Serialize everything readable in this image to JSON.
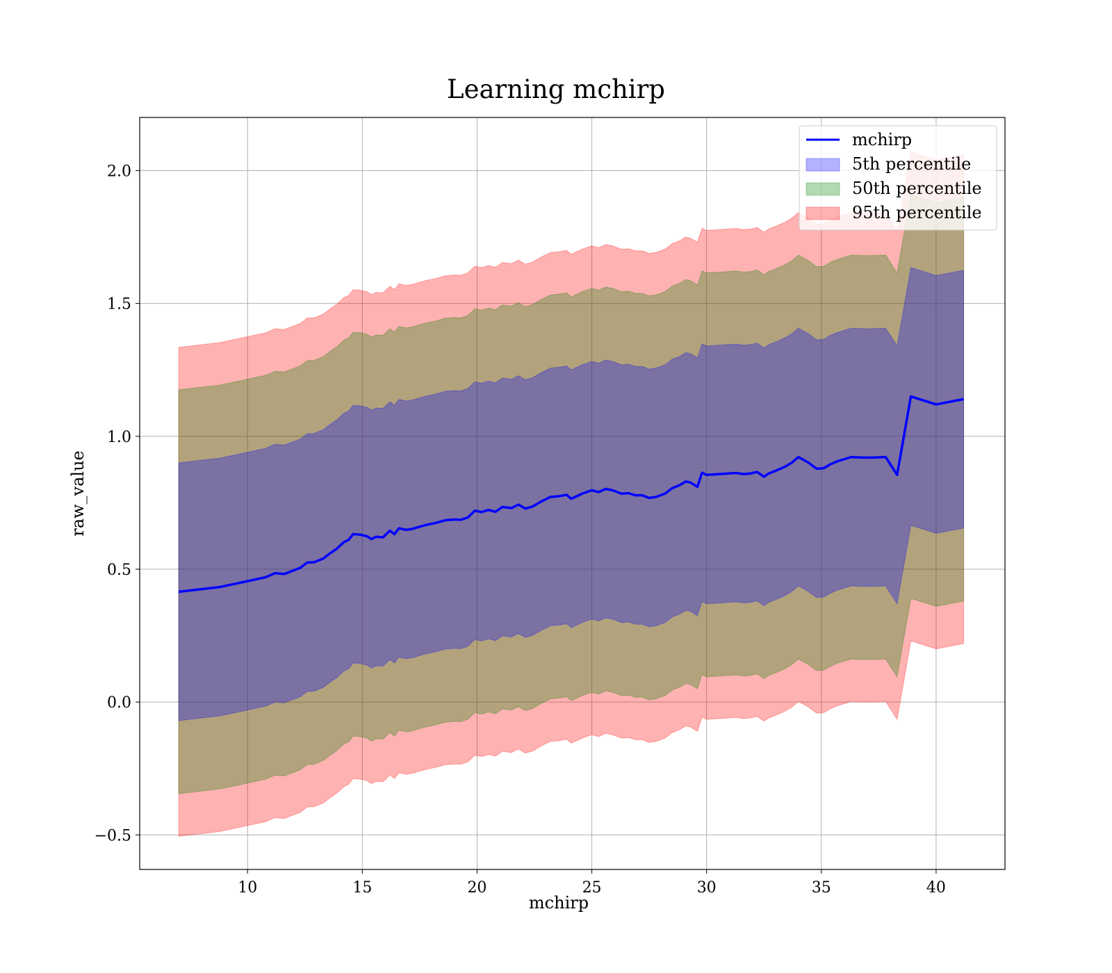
{
  "chart_data": {
    "type": "line",
    "title": "Learning mchirp",
    "xlabel": "mchirp",
    "ylabel": "raw_value",
    "xlim": [
      5.3,
      43.0
    ],
    "ylim": [
      -0.63,
      2.2
    ],
    "xticks": [
      10,
      15,
      20,
      25,
      30,
      35,
      40
    ],
    "xtick_labels": [
      "10",
      "15",
      "20",
      "25",
      "30",
      "35",
      "40"
    ],
    "yticks": [
      -0.5,
      0.0,
      0.5,
      1.0,
      1.5,
      2.0
    ],
    "ytick_labels": [
      "−0.5",
      "0.0",
      "0.5",
      "1.0",
      "1.5",
      "2.0"
    ],
    "grid": true,
    "legend_position": "top-right",
    "x": [
      7.0,
      8.8,
      10.0,
      10.8,
      11.2,
      11.6,
      12.3,
      12.6,
      12.9,
      13.3,
      13.6,
      13.9,
      14.2,
      14.4,
      14.6,
      14.9,
      15.2,
      15.4,
      15.6,
      15.9,
      16.2,
      16.4,
      16.6,
      16.9,
      17.2,
      17.5,
      17.8,
      18.2,
      18.6,
      19.0,
      19.3,
      19.6,
      19.9,
      20.2,
      20.5,
      20.8,
      21.1,
      21.5,
      21.8,
      22.1,
      22.4,
      22.8,
      23.2,
      23.6,
      23.9,
      24.1,
      24.6,
      25.0,
      25.3,
      25.6,
      25.9,
      26.3,
      26.6,
      26.9,
      27.2,
      27.5,
      27.8,
      28.2,
      28.5,
      28.8,
      29.1,
      29.3,
      29.6,
      29.8,
      30.0,
      30.4,
      30.9,
      31.3,
      31.6,
      31.9,
      32.2,
      32.5,
      32.7,
      33.0,
      33.4,
      33.7,
      34.0,
      34.4,
      34.8,
      35.1,
      35.4,
      35.7,
      36.3,
      36.8,
      37.2,
      37.8,
      38.3,
      38.9,
      40.0,
      41.2
    ],
    "mchirp": [
      0.415,
      0.433,
      0.455,
      0.47,
      0.485,
      0.482,
      0.505,
      0.525,
      0.526,
      0.54,
      0.56,
      0.578,
      0.602,
      0.61,
      0.632,
      0.63,
      0.624,
      0.613,
      0.622,
      0.62,
      0.645,
      0.632,
      0.654,
      0.648,
      0.652,
      0.66,
      0.667,
      0.674,
      0.684,
      0.687,
      0.686,
      0.695,
      0.72,
      0.715,
      0.723,
      0.716,
      0.734,
      0.73,
      0.743,
      0.728,
      0.735,
      0.755,
      0.772,
      0.775,
      0.78,
      0.765,
      0.785,
      0.797,
      0.79,
      0.802,
      0.797,
      0.784,
      0.786,
      0.778,
      0.778,
      0.768,
      0.772,
      0.785,
      0.805,
      0.815,
      0.83,
      0.826,
      0.81,
      0.863,
      0.855,
      0.857,
      0.86,
      0.862,
      0.858,
      0.86,
      0.866,
      0.848,
      0.86,
      0.87,
      0.885,
      0.9,
      0.922,
      0.903,
      0.878,
      0.88,
      0.895,
      0.906,
      0.922,
      0.92,
      0.92,
      0.922,
      0.855,
      1.15,
      1.12,
      1.14
    ],
    "series": [
      {
        "name": "mchirp",
        "color": "#0000ff"
      },
      {
        "name": "5th percentile",
        "color": "#0000ff",
        "half_width": 0.485
      },
      {
        "name": "50th percentile",
        "color": "#008000",
        "half_width": 0.76
      },
      {
        "name": "95th percentile",
        "color": "#ff0000",
        "half_width": 0.92
      }
    ]
  }
}
